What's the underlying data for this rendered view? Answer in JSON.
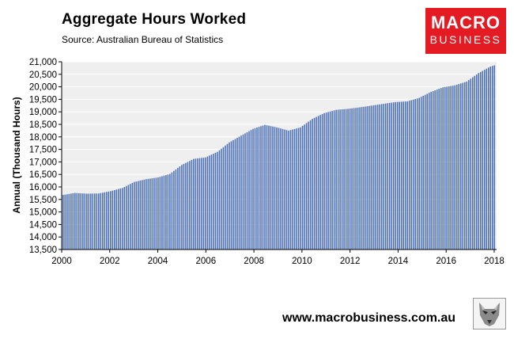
{
  "header": {
    "title": "Aggregate Hours Worked",
    "subtitle": "Source: Australian Bureau of Statistics"
  },
  "logo": {
    "line1": "MACRO",
    "line2": "BUSINESS",
    "color": "#e41b23"
  },
  "footer": {
    "url": "www.macrobusiness.com.au"
  },
  "colors": {
    "bar": "#4a6fb5",
    "plot_bg": "#efefef",
    "gridline": "#ffffff"
  },
  "chart_data": {
    "type": "bar",
    "title": "Aggregate Hours Worked",
    "xlabel": "",
    "ylabel": "Annual (Thousand Hours)",
    "ylim": [
      13500,
      21000
    ],
    "xlim": [
      2000,
      2018.1
    ],
    "grid": "horizontal",
    "legend": "none",
    "yticks": [
      13500,
      14000,
      14500,
      15000,
      15500,
      16000,
      16500,
      17000,
      17500,
      18000,
      18500,
      19000,
      19500,
      20000,
      20500,
      21000
    ],
    "ytick_labels": [
      "13,500",
      "14,000",
      "14,500",
      "15,000",
      "15,500",
      "16,000",
      "16,500",
      "17,000",
      "17,500",
      "18,000",
      "18,500",
      "19,000",
      "19,500",
      "20,000",
      "20,500",
      "21,000"
    ],
    "xticks": [
      2000,
      2002,
      2004,
      2006,
      2008,
      2010,
      2012,
      2014,
      2016,
      2018
    ],
    "xtick_labels": [
      "2000",
      "2002",
      "2004",
      "2006",
      "2008",
      "2010",
      "2012",
      "2014",
      "2016",
      "2018"
    ],
    "frequency": "monthly",
    "start": "2000-01",
    "end": "2018-03",
    "keypoints": [
      [
        2000.0,
        15680
      ],
      [
        2000.5,
        15760
      ],
      [
        2001.0,
        15730
      ],
      [
        2001.5,
        15740
      ],
      [
        2002.0,
        15830
      ],
      [
        2002.5,
        15960
      ],
      [
        2003.0,
        16200
      ],
      [
        2003.5,
        16310
      ],
      [
        2004.0,
        16380
      ],
      [
        2004.5,
        16520
      ],
      [
        2005.0,
        16880
      ],
      [
        2005.5,
        17120
      ],
      [
        2006.0,
        17180
      ],
      [
        2006.5,
        17400
      ],
      [
        2007.0,
        17780
      ],
      [
        2007.5,
        18050
      ],
      [
        2008.0,
        18320
      ],
      [
        2008.5,
        18480
      ],
      [
        2009.0,
        18380
      ],
      [
        2009.5,
        18250
      ],
      [
        2010.0,
        18380
      ],
      [
        2010.5,
        18720
      ],
      [
        2011.0,
        18950
      ],
      [
        2011.5,
        19080
      ],
      [
        2012.0,
        19120
      ],
      [
        2012.5,
        19180
      ],
      [
        2013.0,
        19250
      ],
      [
        2013.5,
        19320
      ],
      [
        2014.0,
        19390
      ],
      [
        2014.5,
        19420
      ],
      [
        2015.0,
        19560
      ],
      [
        2015.5,
        19800
      ],
      [
        2016.0,
        19980
      ],
      [
        2016.5,
        20060
      ],
      [
        2017.0,
        20210
      ],
      [
        2017.5,
        20550
      ],
      [
        2018.0,
        20810
      ],
      [
        2018.17,
        20860
      ]
    ]
  }
}
